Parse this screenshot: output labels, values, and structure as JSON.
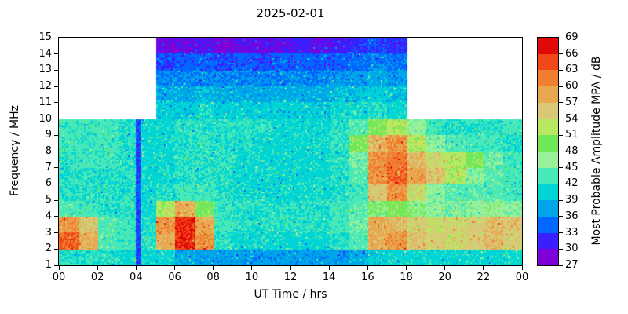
{
  "chart_data": {
    "type": "heatmap",
    "title": "2025-02-01",
    "xlabel": "UT Time / hrs",
    "ylabel": "Frequency / MHz",
    "colorbar_label": "Most Probable Amplitude MPA / dB",
    "x_range_hrs": [
      0,
      24
    ],
    "y_range_mhz": [
      1,
      15
    ],
    "x_tick_hours": [
      0,
      2,
      4,
      6,
      8,
      10,
      12,
      14,
      16,
      18,
      20,
      22,
      24
    ],
    "x_tick_labels": [
      "00",
      "02",
      "04",
      "06",
      "08",
      "10",
      "12",
      "14",
      "16",
      "18",
      "20",
      "22",
      "00"
    ],
    "y_ticks": [
      1,
      2,
      3,
      4,
      5,
      6,
      7,
      8,
      9,
      10,
      11,
      12,
      13,
      14,
      15
    ],
    "colorbar_ticks": [
      27,
      30,
      33,
      36,
      39,
      42,
      45,
      48,
      51,
      54,
      57,
      60,
      63,
      66,
      69
    ],
    "colorbar_range_db": [
      27,
      69
    ],
    "no_data_color": "#ffffff",
    "frame_color": "#000000",
    "palette": [
      {
        "min": 27,
        "color": "#8000d8"
      },
      {
        "min": 30,
        "color": "#3820ff"
      },
      {
        "min": 33,
        "color": "#0068ff"
      },
      {
        "min": 36,
        "color": "#00a4e8"
      },
      {
        "min": 39,
        "color": "#00d4d4"
      },
      {
        "min": 42,
        "color": "#48e8b8"
      },
      {
        "min": 45,
        "color": "#98f098"
      },
      {
        "min": 48,
        "color": "#70e858"
      },
      {
        "min": 51,
        "color": "#b8e860"
      },
      {
        "min": 54,
        "color": "#d8c878"
      },
      {
        "min": 57,
        "color": "#e8a850"
      },
      {
        "min": 60,
        "color": "#f08030"
      },
      {
        "min": 63,
        "color": "#f04818"
      },
      {
        "min": 66,
        "color": "#e00808"
      }
    ],
    "x_bin_hrs": 1,
    "y_bin_mhz": 1,
    "freq_row_start_mhz": [
      1,
      2,
      3,
      4,
      5,
      6,
      7,
      8,
      9,
      10,
      11,
      12,
      13,
      14
    ],
    "values": [
      [
        42,
        42,
        42,
        41,
        41,
        41,
        38,
        37,
        37,
        37,
        37,
        37,
        37,
        37,
        37,
        38,
        40,
        41,
        41,
        41,
        41,
        41,
        41,
        41
      ],
      [
        63,
        58,
        44,
        43,
        42,
        58,
        66,
        60,
        42,
        41,
        41,
        41,
        41,
        41,
        42,
        44,
        58,
        60,
        56,
        55,
        54,
        55,
        57,
        55
      ],
      [
        60,
        56,
        44,
        43,
        42,
        60,
        66,
        58,
        43,
        42,
        42,
        42,
        42,
        42,
        43,
        45,
        58,
        57,
        55,
        54,
        54,
        55,
        57,
        56
      ],
      [
        44,
        43,
        42,
        42,
        41,
        52,
        58,
        50,
        43,
        42,
        42,
        42,
        42,
        42,
        43,
        44,
        48,
        50,
        48,
        46,
        45,
        46,
        47,
        46
      ],
      [
        42,
        42,
        42,
        42,
        41,
        42,
        43,
        43,
        42,
        41,
        41,
        41,
        41,
        41,
        42,
        43,
        56,
        60,
        54,
        46,
        44,
        44,
        44,
        43
      ],
      [
        42,
        42,
        42,
        42,
        41,
        41,
        42,
        42,
        42,
        41,
        41,
        41,
        41,
        41,
        42,
        44,
        60,
        63,
        59,
        56,
        52,
        46,
        44,
        43
      ],
      [
        42,
        43,
        43,
        42,
        41,
        41,
        42,
        42,
        42,
        41,
        41,
        41,
        41,
        41,
        42,
        45,
        60,
        62,
        57,
        54,
        52,
        50,
        45,
        43
      ],
      [
        43,
        43,
        43,
        42,
        41,
        41,
        42,
        42,
        42,
        42,
        41,
        41,
        41,
        41,
        42,
        50,
        57,
        60,
        52,
        46,
        44,
        43,
        43,
        42
      ],
      [
        43,
        43,
        43,
        42,
        41,
        41,
        42,
        42,
        42,
        42,
        42,
        41,
        41,
        41,
        42,
        44,
        50,
        52,
        46,
        43,
        42,
        42,
        42,
        43
      ],
      [
        null,
        null,
        null,
        null,
        null,
        40,
        40,
        41,
        40,
        40,
        40,
        40,
        40,
        40,
        41,
        41,
        42,
        41,
        null,
        null,
        null,
        null,
        null,
        null
      ],
      [
        null,
        null,
        null,
        null,
        null,
        38,
        38,
        39,
        38,
        38,
        38,
        38,
        38,
        38,
        39,
        39,
        40,
        39,
        null,
        null,
        null,
        null,
        null,
        null
      ],
      [
        null,
        null,
        null,
        null,
        null,
        36,
        36,
        36,
        36,
        36,
        36,
        36,
        36,
        36,
        37,
        37,
        38,
        37,
        null,
        null,
        null,
        null,
        null,
        null
      ],
      [
        null,
        null,
        null,
        null,
        null,
        33,
        34,
        34,
        33,
        34,
        33,
        34,
        34,
        34,
        34,
        35,
        36,
        35,
        null,
        null,
        null,
        null,
        null,
        null
      ],
      [
        null,
        null,
        null,
        null,
        null,
        29,
        30,
        30,
        29,
        30,
        30,
        30,
        31,
        30,
        31,
        32,
        33,
        32,
        null,
        null,
        null,
        null,
        null,
        null
      ]
    ],
    "features": [
      {
        "type": "vertical_stripe",
        "x_hr": 4.1,
        "width_hr": 0.3,
        "y_from_mhz": 1,
        "y_to_mhz": 10,
        "db": 33
      }
    ]
  }
}
